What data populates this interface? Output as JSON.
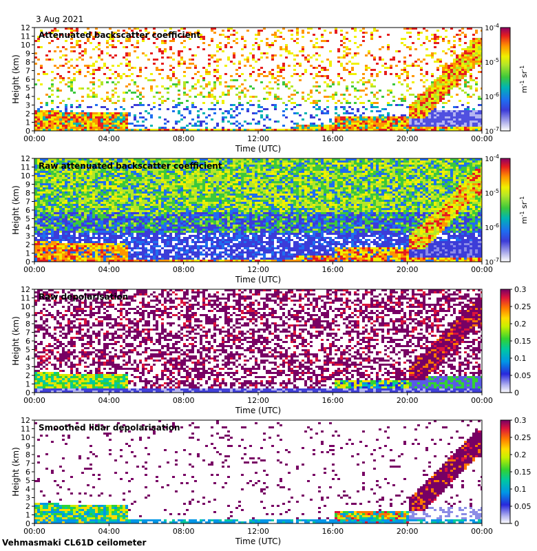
{
  "date_label": "3 Aug 2021",
  "instrument_label": "Vehmasmaki CL61D ceilometer",
  "colors": {
    "background": "#ffffff",
    "no_data": "#e8e8f0"
  },
  "chart_data": [
    {
      "type": "heatmap",
      "id": "att",
      "title": "Attenuated backscatter coefficient",
      "xlabel": "Time (UTC)",
      "ylabel": "Height (km)",
      "x_ticks": [
        "00:00",
        "04:00",
        "08:00",
        "12:00",
        "16:00",
        "20:00",
        "00:00"
      ],
      "xlim_hours": [
        0,
        24
      ],
      "y_ticks": [
        0,
        1,
        2,
        3,
        4,
        5,
        6,
        7,
        8,
        9,
        10,
        11,
        12
      ],
      "ylim_km": [
        0,
        12
      ],
      "colorbar": {
        "scale": "log",
        "units": "m-1 sr-1",
        "unit_label": "m",
        "unit_exp1": "-1",
        "unit_mid": " sr",
        "unit_exp2": "-1",
        "tick_bases": [
          "10",
          "10",
          "10",
          "10"
        ],
        "tick_exps": [
          "-4",
          "-5",
          "-6",
          "-7"
        ]
      }
    },
    {
      "type": "heatmap",
      "id": "raw_att",
      "title": "Raw attenuated backscatter coefficient",
      "xlabel": "Time (UTC)",
      "ylabel": "Height (km)",
      "x_ticks": [
        "00:00",
        "04:00",
        "08:00",
        "12:00",
        "16:00",
        "20:00",
        "00:00"
      ],
      "xlim_hours": [
        0,
        24
      ],
      "y_ticks": [
        0,
        1,
        2,
        3,
        4,
        5,
        6,
        7,
        8,
        9,
        10,
        11,
        12
      ],
      "ylim_km": [
        0,
        12
      ],
      "colorbar": {
        "scale": "log",
        "units": "m-1 sr-1",
        "unit_label": "m",
        "unit_exp1": "-1",
        "unit_mid": " sr",
        "unit_exp2": "-1",
        "tick_bases": [
          "10",
          "10",
          "10",
          "10"
        ],
        "tick_exps": [
          "-4",
          "-5",
          "-6",
          "-7"
        ]
      }
    },
    {
      "type": "heatmap",
      "id": "raw_depol",
      "title": "Raw depolarisation",
      "xlabel": "Time (UTC)",
      "ylabel": "Height (km)",
      "x_ticks": [
        "00:00",
        "04:00",
        "08:00",
        "12:00",
        "16:00",
        "20:00",
        "00:00"
      ],
      "xlim_hours": [
        0,
        24
      ],
      "y_ticks": [
        0,
        1,
        2,
        3,
        4,
        5,
        6,
        7,
        8,
        9,
        10,
        11,
        12
      ],
      "ylim_km": [
        0,
        12
      ],
      "colorbar": {
        "scale": "linear",
        "range": [
          0,
          0.3
        ],
        "ticks": [
          "0.3",
          "0.25",
          "0.2",
          "0.15",
          "0.1",
          "0.05",
          "0"
        ]
      }
    },
    {
      "type": "heatmap",
      "id": "smooth_depol",
      "title": "Smoothed lidar depolarisation",
      "xlabel": "Time (UTC)",
      "ylabel": "Height (km)",
      "x_ticks": [
        "00:00",
        "04:00",
        "08:00",
        "12:00",
        "16:00",
        "20:00",
        "00:00"
      ],
      "xlim_hours": [
        0,
        24
      ],
      "y_ticks": [
        0,
        1,
        2,
        3,
        4,
        5,
        6,
        7,
        8,
        9,
        10,
        11,
        12
      ],
      "ylim_km": [
        0,
        12
      ],
      "colorbar": {
        "scale": "linear",
        "range": [
          0,
          0.3
        ],
        "ticks": [
          "0.3",
          "0.25",
          "0.2",
          "0.15",
          "0.1",
          "0.05",
          "0"
        ]
      }
    }
  ]
}
